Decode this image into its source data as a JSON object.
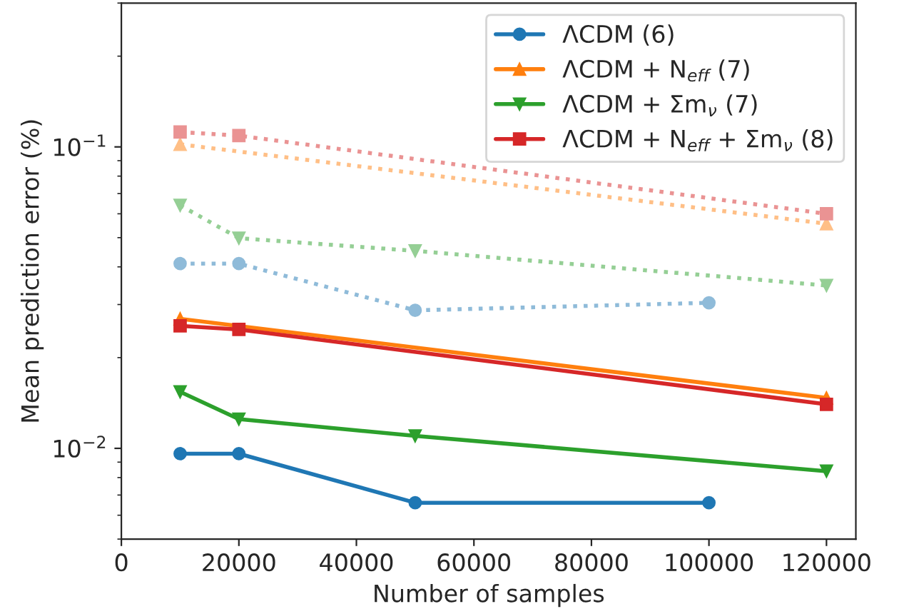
{
  "chart_data": {
    "type": "line",
    "xlabel": "Number of samples",
    "ylabel": "Mean prediction error (%)",
    "log": "y",
    "xlim": [
      0,
      125000
    ],
    "xticks": [
      0,
      20000,
      40000,
      60000,
      80000,
      100000,
      120000
    ],
    "ylim": [
      0.005,
      0.3
    ],
    "yticks": [
      {
        "value": 0.01,
        "label": "10$^{−2}$"
      },
      {
        "value": 0.1,
        "label": "10$^{−1}$"
      }
    ],
    "grid": false,
    "legend": "top right",
    "series": [
      {
        "name": "ΛCDM (6)",
        "color": "#1f77b4",
        "marker": "circle",
        "line_style": "solid",
        "x": [
          10000,
          20000,
          50000,
          100000
        ],
        "values": [
          0.0096,
          0.0096,
          0.0066,
          0.0066
        ]
      },
      {
        "name": "ΛCDM + N$_{eff}$ (7)",
        "color": "#ff7f0e",
        "marker": "triangle",
        "line_style": "solid",
        "x": [
          10000,
          120000
        ],
        "values": [
          0.0269,
          0.0147
        ]
      },
      {
        "name": "ΛCDM + Σm$_{ν}$ (7)",
        "color": "#2ca02c",
        "marker": "triangle_down",
        "line_style": "solid",
        "x": [
          10000,
          20000,
          50000,
          120000
        ],
        "values": [
          0.0154,
          0.0125,
          0.011,
          0.0084
        ]
      },
      {
        "name": "ΛCDM + N$_{eff}$ + Σm$_{ν}$ (8)",
        "color": "#d62728",
        "marker": "square",
        "line_style": "solid",
        "x": [
          10000,
          20000,
          120000
        ],
        "values": [
          0.0255,
          0.0248,
          0.014
        ]
      },
      {
        "color": "#8fbbd9",
        "marker": "circle",
        "line_style": "dotted",
        "x": [
          10000,
          20000,
          50000,
          100000
        ],
        "values": [
          0.041,
          0.041,
          0.0287,
          0.0304
        ]
      },
      {
        "color": "#ffbf86",
        "marker": "triangle",
        "line_style": "dotted",
        "x": [
          10000,
          120000
        ],
        "values": [
          0.102,
          0.0556
        ]
      },
      {
        "color": "#95cf95",
        "marker": "triangle_down",
        "line_style": "dotted",
        "x": [
          10000,
          20000,
          50000,
          120000
        ],
        "values": [
          0.064,
          0.0498,
          0.0452,
          0.0347
        ]
      },
      {
        "color": "#ea9393",
        "marker": "square",
        "line_style": "dotted",
        "x": [
          10000,
          20000,
          120000
        ],
        "values": [
          0.112,
          0.109,
          0.06
        ]
      }
    ]
  }
}
